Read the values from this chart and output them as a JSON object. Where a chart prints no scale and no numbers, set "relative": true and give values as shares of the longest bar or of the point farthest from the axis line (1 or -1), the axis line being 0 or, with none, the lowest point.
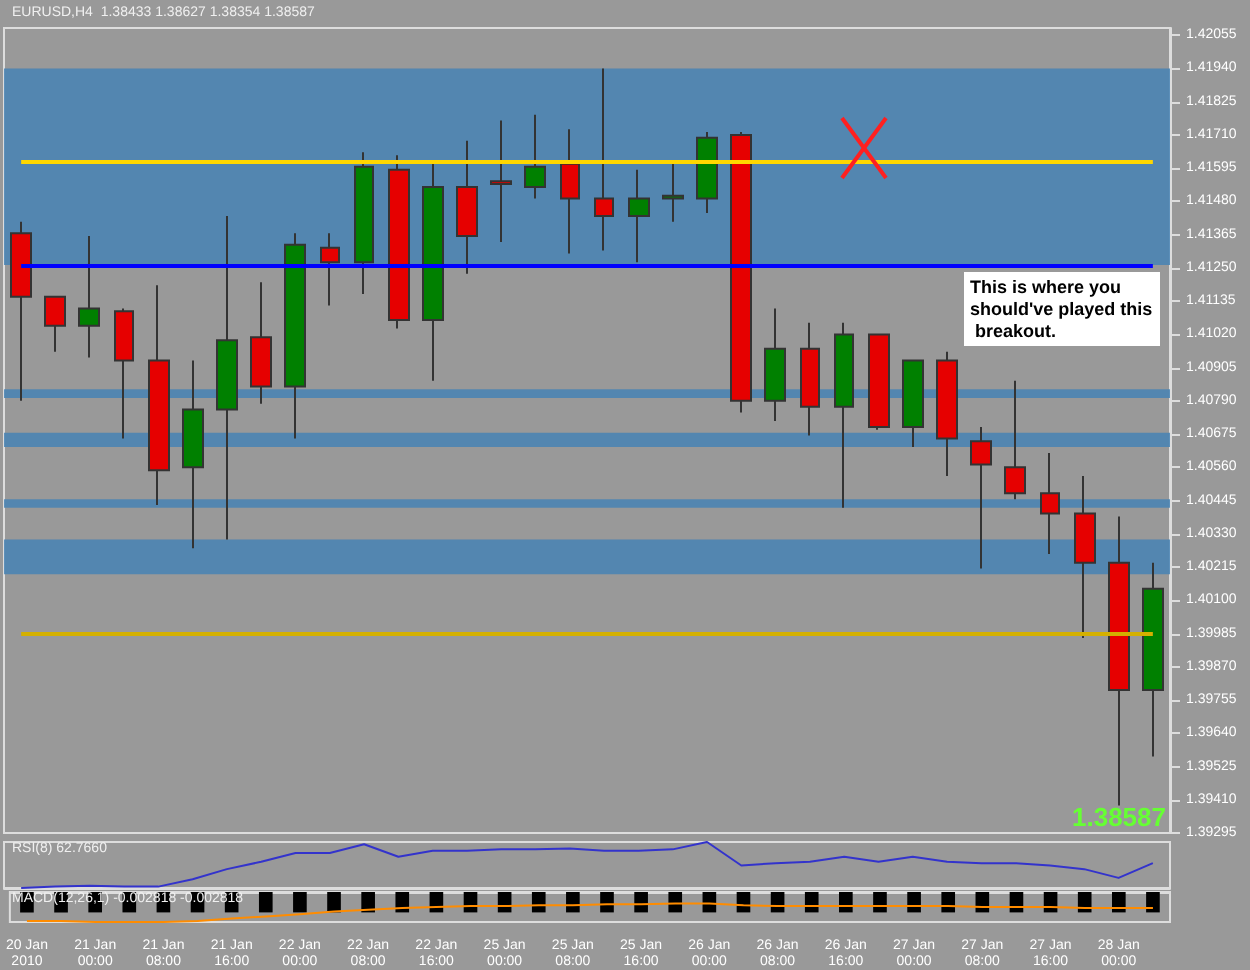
{
  "chart_data": [
    {
      "type": "candlestick",
      "title": "EURUSD,H4  1.38433 1.38627 1.38354 1.38587",
      "categories": [
        "20 Jan 2010",
        null,
        "21 Jan 00:00",
        null,
        "21 Jan 08:00",
        null,
        "21 Jan 16:00",
        null,
        "22 Jan 00:00",
        null,
        "22 Jan 08:00",
        null,
        "22 Jan 16:00",
        null,
        "25 Jan 00:00",
        null,
        "25 Jan 08:00",
        null,
        "25 Jan 16:00",
        null,
        "26 Jan 00:00",
        null,
        "26 Jan 08:00",
        null,
        "26 Jan 16:00",
        null,
        "27 Jan 00:00",
        null,
        "27 Jan 08:00",
        null,
        "27 Jan 16:00",
        null,
        "28 Jan 00:00",
        null
      ],
      "ohlc": [
        [
          1.4137,
          1.4141,
          1.4079,
          1.4115
        ],
        [
          1.4115,
          1.4115,
          1.4096,
          1.4105
        ],
        [
          1.4105,
          1.4136,
          1.4094,
          1.4111
        ],
        [
          1.411,
          1.4111,
          1.4066,
          1.4093
        ],
        [
          1.4093,
          1.4119,
          1.4043,
          1.4055
        ],
        [
          1.4056,
          1.4093,
          1.4028,
          1.4076
        ],
        [
          1.4076,
          1.4143,
          1.4031,
          1.41
        ],
        [
          1.4101,
          1.412,
          1.4078,
          1.4084
        ],
        [
          1.4084,
          1.4137,
          1.4066,
          1.4133
        ],
        [
          1.4132,
          1.4137,
          1.4112,
          1.4127
        ],
        [
          1.4127,
          1.4165,
          1.4116,
          1.416
        ],
        [
          1.4159,
          1.4164,
          1.4104,
          1.4107
        ],
        [
          1.4107,
          1.4162,
          1.4086,
          1.4153
        ],
        [
          1.4153,
          1.4169,
          1.4123,
          1.4136
        ],
        [
          1.4155,
          1.4176,
          1.4134,
          1.4154
        ],
        [
          1.4153,
          1.4178,
          1.4149,
          1.416
        ],
        [
          1.4161,
          1.4173,
          1.413,
          1.4149
        ],
        [
          1.4149,
          1.4194,
          1.4131,
          1.4143
        ],
        [
          1.4143,
          1.4159,
          1.4127,
          1.4149
        ],
        [
          1.4149,
          1.4161,
          1.4141,
          1.415
        ],
        [
          1.4149,
          1.4172,
          1.4144,
          1.417
        ],
        [
          1.4171,
          1.4172,
          1.4075,
          1.4079
        ],
        [
          1.4079,
          1.4111,
          1.4072,
          1.4097
        ],
        [
          1.4097,
          1.4106,
          1.4067,
          1.4077
        ],
        [
          1.4077,
          1.4106,
          1.4042,
          1.4102
        ],
        [
          1.4102,
          1.4102,
          1.4069,
          1.407
        ],
        [
          1.407,
          1.4093,
          1.4063,
          1.4093
        ],
        [
          1.4093,
          1.4096,
          1.4053,
          1.4066
        ],
        [
          1.4065,
          1.407,
          1.4021,
          1.4057
        ],
        [
          1.4056,
          1.4086,
          1.4045,
          1.4047
        ],
        [
          1.4047,
          1.4061,
          1.4026,
          1.404
        ],
        [
          1.404,
          1.4053,
          1.3997,
          1.4023
        ],
        [
          1.4023,
          1.4039,
          1.3939,
          1.3979
        ],
        [
          1.3979,
          1.4023,
          1.3956,
          1.4014
        ]
      ],
      "colors": [
        "#e60000",
        "#e60000",
        "#008000",
        "#e60000",
        "#e60000",
        "#008000",
        "#008000",
        "#e60000",
        "#008000",
        "#e60000",
        "#008000",
        "#e60000",
        "#008000",
        "#e60000",
        "#e60000",
        "#008000",
        "#e60000",
        "#e60000",
        "#008000",
        "#008000",
        "#008000",
        "#e60000",
        "#008000",
        "#e60000",
        "#008000",
        "#e60000",
        "#008000",
        "#e60000",
        "#e60000",
        "#e60000",
        "#e60000",
        "#e60000",
        "#e60000",
        "#008000"
      ],
      "ylim": [
        1.39295,
        1.4208
      ],
      "yticks": [
        1.39295,
        {
          "value": 1.3941,
          "label": "1.39410"
        },
        1.39525,
        {
          "value": 1.3964,
          "label": "1.39640"
        },
        1.39755,
        {
          "value": 1.3987,
          "label": "1.39870"
        },
        1.39985,
        {
          "value": 1.401,
          "label": "1.40100"
        },
        1.40215,
        {
          "value": 1.4033,
          "label": "1.40330"
        },
        1.40445,
        {
          "value": 1.4056,
          "label": "1.40560"
        },
        1.40675,
        {
          "value": 1.4079,
          "label": "1.40790"
        },
        1.40905,
        {
          "value": 1.4102,
          "label": "1.41020"
        },
        1.41135,
        {
          "value": 1.4125,
          "label": "1.41250"
        },
        1.41365,
        {
          "value": 1.4148,
          "label": "1.41480"
        },
        1.41595,
        {
          "value": 1.4171,
          "label": "1.41710"
        },
        1.41825,
        {
          "value": 1.4194,
          "label": "1.41940"
        },
        1.42055
      ],
      "tick_labels": "y",
      "ref_lines": [
        {
          "axis": "y",
          "value": 1.4126,
          "color": "#0000ff"
        },
        {
          "axis": "y",
          "value": 1.4162,
          "color": "#ffd700"
        },
        {
          "axis": "y",
          "value": 1.39985,
          "color": "#d4b000"
        }
      ],
      "bands": [
        {
          "axis": "y",
          "from": 1.4126,
          "to": 1.4194,
          "color": "#4682b4"
        },
        {
          "axis": "y",
          "from": 1.408,
          "to": 1.4083,
          "color": "#4682b4"
        },
        {
          "axis": "y",
          "from": 1.4063,
          "to": 1.4068,
          "color": "#4682b4"
        },
        {
          "axis": "y",
          "from": 1.4042,
          "to": 1.4045,
          "color": "#4682b4"
        },
        {
          "axis": "y",
          "from": 1.4019,
          "to": 1.4031,
          "color": "#4682b4"
        }
      ],
      "annotations": [
        "This is where you should've played this breakout.",
        "1.38587"
      ]
    },
    {
      "type": "line",
      "title": "RSI(8) 62.7660",
      "relative": true,
      "tick_labels": false,
      "categories": [
        "20 Jan 2010",
        null,
        "21 Jan 00:00",
        null,
        "21 Jan 08:00",
        null,
        "21 Jan 16:00",
        null,
        "22 Jan 00:00",
        null,
        "22 Jan 08:00",
        null,
        "22 Jan 16:00",
        null,
        "25 Jan 00:00",
        null,
        "25 Jan 08:00",
        null,
        "25 Jan 16:00",
        null,
        "26 Jan 00:00",
        null,
        "26 Jan 08:00",
        null,
        "26 Jan 16:00",
        null,
        "27 Jan 00:00",
        null,
        "27 Jan 08:00",
        null,
        "27 Jan 16:00",
        null,
        "28 Jan 00:00",
        null
      ],
      "series": [
        {
          "color": "#3333cc",
          "values": [
            0,
            0.03,
            0.05,
            0.03,
            0.03,
            0.19,
            0.41,
            0.57,
            0.76,
            0.76,
            0.95,
            0.68,
            0.81,
            0.81,
            0.84,
            0.84,
            0.86,
            0.81,
            0.81,
            0.84,
            1,
            0.49,
            0.54,
            0.57,
            0.68,
            0.57,
            0.68,
            0.57,
            0.54,
            0.54,
            0.49,
            0.41,
            0.22,
            0.54
          ]
        }
      ]
    },
    {
      "type": "bar",
      "title": "MACD(12,26,1) -0.002818 -0.002818",
      "relative": true,
      "tick_labels": "x",
      "categories": [
        "20 Jan 2010",
        null,
        "21 Jan 00:00",
        null,
        "21 Jan 08:00",
        null,
        "21 Jan 16:00",
        null,
        "22 Jan 00:00",
        null,
        "22 Jan 08:00",
        null,
        "22 Jan 16:00",
        null,
        "25 Jan 00:00",
        null,
        "25 Jan 08:00",
        null,
        "25 Jan 16:00",
        null,
        "26 Jan 00:00",
        null,
        "26 Jan 08:00",
        null,
        "26 Jan 16:00",
        null,
        "27 Jan 00:00",
        null,
        "27 Jan 08:00",
        null,
        "27 Jan 16:00",
        null,
        "28 Jan 00:00",
        null
      ],
      "series": [
        {
          "type": "bar",
          "color": "#000000",
          "values": [
            -0.68,
            -0.68,
            -0.68,
            -0.68,
            -0.68,
            -0.68,
            -0.68,
            -0.68,
            -0.68,
            -0.68,
            -0.68,
            -0.68,
            -0.68,
            -0.68,
            -0.68,
            -0.68,
            -0.68,
            -0.68,
            -0.68,
            -0.68,
            -0.68,
            -0.68,
            -0.68,
            -0.68,
            -0.68,
            -0.68,
            -0.68,
            -0.68,
            -0.68,
            -0.68,
            -0.68,
            -0.68,
            -0.68,
            -0.68
          ]
        },
        {
          "type": "line",
          "color": "#ff8c00",
          "values": [
            -0.97,
            -0.97,
            -1,
            -1,
            -1,
            -0.97,
            -0.88,
            -0.82,
            -0.74,
            -0.65,
            -0.59,
            -0.53,
            -0.5,
            -0.47,
            -0.47,
            -0.44,
            -0.44,
            -0.41,
            -0.41,
            -0.38,
            -0.38,
            -0.44,
            -0.47,
            -0.47,
            -0.47,
            -0.47,
            -0.47,
            -0.47,
            -0.5,
            -0.5,
            -0.5,
            -0.53,
            -0.53,
            -0.53
          ]
        }
      ]
    }
  ]
}
